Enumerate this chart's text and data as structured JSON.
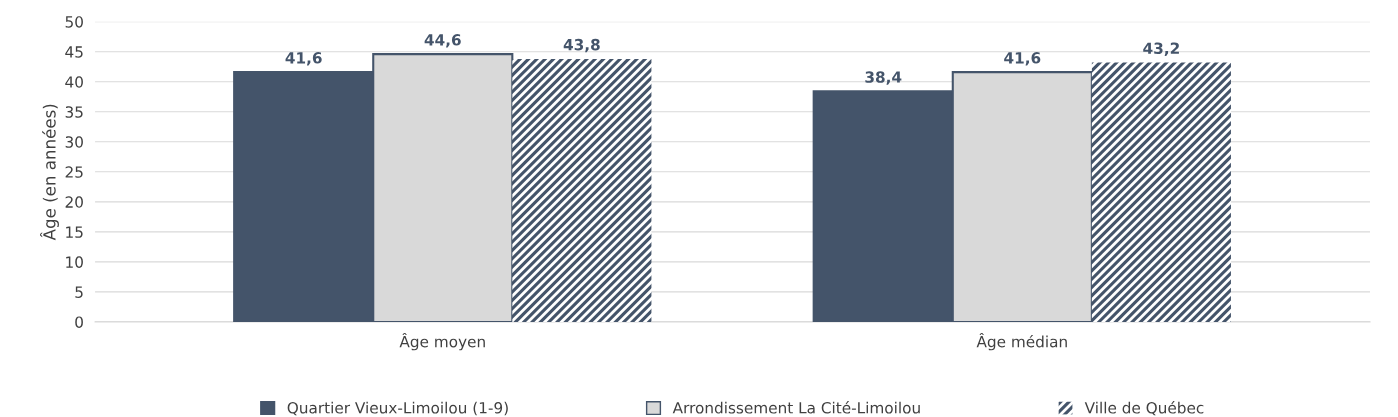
{
  "chart_data": {
    "type": "bar",
    "ylabel": "Âge (en années)",
    "categories": [
      "Âge moyen",
      "Âge médian"
    ],
    "series": [
      {
        "name": "Quartier Vieux-Limoilou (1-9)",
        "color": "#44546a",
        "values": [
          41.6,
          38.4
        ],
        "value_labels": [
          "41,6",
          "38,4"
        ]
      },
      {
        "name": "Arrondissement La Cité-Limoilou",
        "color": "#d9d9d9",
        "values": [
          44.6,
          41.6
        ],
        "value_labels": [
          "44,6",
          "41,6"
        ]
      },
      {
        "name": "Ville de Québec",
        "color": "#44546a",
        "values": [
          43.8,
          43.2
        ],
        "value_labels": [
          "43,8",
          "43,2"
        ]
      }
    ],
    "ylim": [
      0,
      50
    ],
    "yticks": [
      0,
      5,
      10,
      15,
      20,
      25,
      30,
      35,
      40,
      45,
      50
    ],
    "grid": "y",
    "legend": "bottom"
  }
}
